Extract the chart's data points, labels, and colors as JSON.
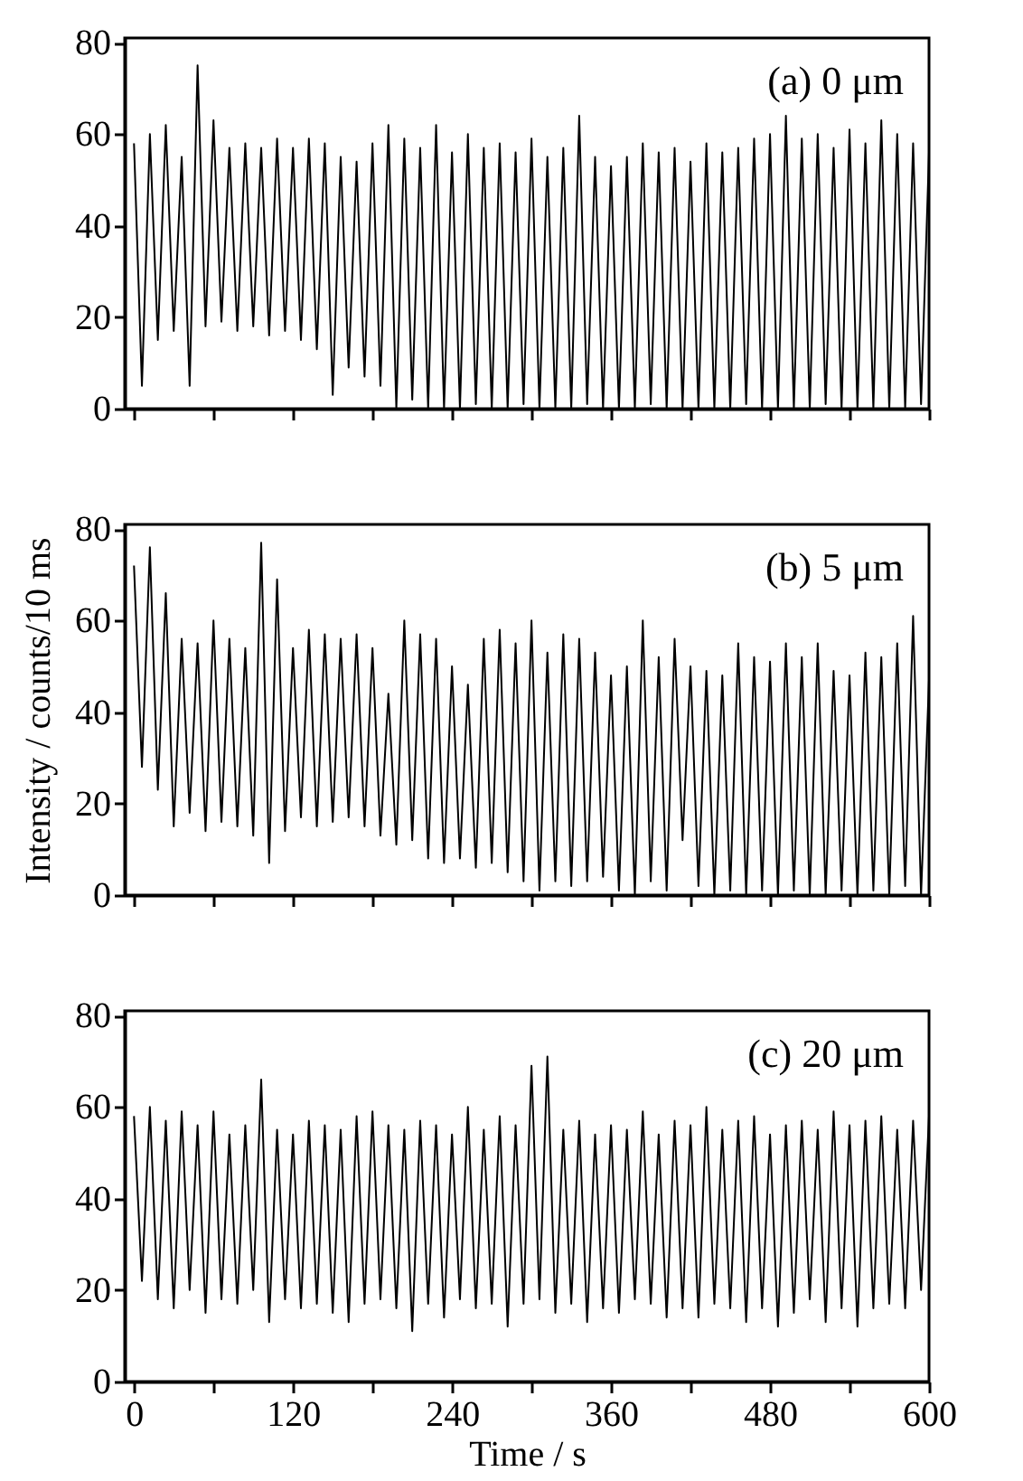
{
  "chart_data": [
    {
      "type": "line",
      "annotations": [
        "(a) 0 μm"
      ],
      "tick_labels": "y",
      "xlim": [
        -7,
        600
      ],
      "ylim": [
        0,
        81
      ],
      "yticks": [
        0,
        20,
        40,
        60,
        80
      ],
      "xticks": [
        0,
        {
          "value": 60,
          "label": null
        },
        120,
        {
          "value": 180,
          "label": null
        },
        240,
        {
          "value": 300,
          "label": null
        },
        360,
        {
          "value": 420,
          "label": null
        },
        480,
        {
          "value": 540,
          "label": null
        },
        600
      ],
      "x": [
        0,
        6,
        12,
        18,
        24,
        30,
        36,
        42,
        48,
        54,
        60,
        66,
        72,
        78,
        84,
        90,
        96,
        102,
        108,
        114,
        120,
        126,
        132,
        138,
        144,
        150,
        156,
        162,
        168,
        174,
        180,
        186,
        192,
        198,
        204,
        210,
        216,
        222,
        228,
        234,
        240,
        246,
        252,
        258,
        264,
        270,
        276,
        282,
        288,
        294,
        300,
        306,
        312,
        318,
        324,
        330,
        336,
        342,
        348,
        354,
        360,
        366,
        372,
        378,
        384,
        390,
        396,
        402,
        408,
        414,
        420,
        426,
        432,
        438,
        444,
        450,
        456,
        462,
        468,
        474,
        480,
        486,
        492,
        498,
        504,
        510,
        516,
        522,
        528,
        534,
        540,
        546,
        552,
        558,
        564,
        570,
        576,
        582,
        588,
        594,
        600
      ],
      "series": [
        {
          "color": "#000000",
          "values": [
            58,
            5,
            60,
            15,
            62,
            17,
            55,
            5,
            75,
            18,
            63,
            19,
            57,
            17,
            58,
            18,
            57,
            16,
            59,
            17,
            57,
            15,
            59,
            13,
            58,
            3,
            55,
            9,
            54,
            7,
            58,
            5,
            62,
            0,
            59,
            2,
            57,
            0,
            62,
            0,
            56,
            0,
            60,
            1,
            57,
            0,
            58,
            0,
            56,
            1,
            59,
            0,
            55,
            0,
            57,
            0,
            64,
            1,
            55,
            0,
            53,
            0,
            55,
            0,
            58,
            1,
            56,
            0,
            57,
            0,
            54,
            0,
            58,
            0,
            56,
            0,
            57,
            1,
            59,
            0,
            60,
            0,
            64,
            0,
            59,
            0,
            60,
            1,
            57,
            0,
            61,
            0,
            58,
            0,
            63,
            0,
            60,
            0,
            58,
            1,
            56
          ]
        }
      ]
    },
    {
      "type": "line",
      "annotations": [
        "(b) 5 μm"
      ],
      "ylabel": "Intensity / counts/10 ms",
      "tick_labels": "y",
      "xlim": [
        -7,
        600
      ],
      "ylim": [
        0,
        81
      ],
      "yticks": [
        0,
        20,
        40,
        60,
        80
      ],
      "xticks": [
        0,
        {
          "value": 60,
          "label": null
        },
        120,
        {
          "value": 180,
          "label": null
        },
        240,
        {
          "value": 300,
          "label": null
        },
        360,
        {
          "value": 420,
          "label": null
        },
        480,
        {
          "value": 540,
          "label": null
        },
        600
      ],
      "x": [
        0,
        6,
        12,
        18,
        24,
        30,
        36,
        42,
        48,
        54,
        60,
        66,
        72,
        78,
        84,
        90,
        96,
        102,
        108,
        114,
        120,
        126,
        132,
        138,
        144,
        150,
        156,
        162,
        168,
        174,
        180,
        186,
        192,
        198,
        204,
        210,
        216,
        222,
        228,
        234,
        240,
        246,
        252,
        258,
        264,
        270,
        276,
        282,
        288,
        294,
        300,
        306,
        312,
        318,
        324,
        330,
        336,
        342,
        348,
        354,
        360,
        366,
        372,
        378,
        384,
        390,
        396,
        402,
        408,
        414,
        420,
        426,
        432,
        438,
        444,
        450,
        456,
        462,
        468,
        474,
        480,
        486,
        492,
        498,
        504,
        510,
        516,
        522,
        528,
        534,
        540,
        546,
        552,
        558,
        564,
        570,
        576,
        582,
        588,
        594,
        600
      ],
      "series": [
        {
          "color": "#000000",
          "values": [
            72,
            28,
            76,
            23,
            66,
            15,
            56,
            18,
            55,
            14,
            60,
            16,
            56,
            15,
            54,
            13,
            77,
            7,
            69,
            14,
            54,
            17,
            58,
            15,
            57,
            16,
            56,
            17,
            57,
            15,
            54,
            13,
            44,
            11,
            60,
            12,
            57,
            8,
            56,
            7,
            50,
            8,
            46,
            6,
            56,
            7,
            58,
            5,
            55,
            3,
            60,
            1,
            53,
            3,
            57,
            2,
            56,
            3,
            53,
            4,
            48,
            1,
            50,
            0,
            60,
            3,
            52,
            1,
            56,
            12,
            50,
            2,
            49,
            0,
            48,
            1,
            55,
            0,
            52,
            1,
            51,
            0,
            55,
            1,
            52,
            0,
            55,
            0,
            49,
            1,
            48,
            0,
            53,
            1,
            52,
            0,
            55,
            2,
            61,
            0,
            47
          ]
        }
      ]
    },
    {
      "type": "line",
      "annotations": [
        "(c) 20 μm"
      ],
      "xlabel": "Time / s",
      "xlim": [
        -7,
        600
      ],
      "ylim": [
        0,
        81
      ],
      "yticks": [
        0,
        20,
        40,
        60,
        80
      ],
      "xticks": [
        0,
        {
          "value": 60,
          "label": null
        },
        120,
        {
          "value": 180,
          "label": null
        },
        240,
        {
          "value": 300,
          "label": null
        },
        360,
        {
          "value": 420,
          "label": null
        },
        480,
        {
          "value": 540,
          "label": null
        },
        600
      ],
      "x": [
        0,
        6,
        12,
        18,
        24,
        30,
        36,
        42,
        48,
        54,
        60,
        66,
        72,
        78,
        84,
        90,
        96,
        102,
        108,
        114,
        120,
        126,
        132,
        138,
        144,
        150,
        156,
        162,
        168,
        174,
        180,
        186,
        192,
        198,
        204,
        210,
        216,
        222,
        228,
        234,
        240,
        246,
        252,
        258,
        264,
        270,
        276,
        282,
        288,
        294,
        300,
        306,
        312,
        318,
        324,
        330,
        336,
        342,
        348,
        354,
        360,
        366,
        372,
        378,
        384,
        390,
        396,
        402,
        408,
        414,
        420,
        426,
        432,
        438,
        444,
        450,
        456,
        462,
        468,
        474,
        480,
        486,
        492,
        498,
        504,
        510,
        516,
        522,
        528,
        534,
        540,
        546,
        552,
        558,
        564,
        570,
        576,
        582,
        588,
        594,
        600
      ],
      "series": [
        {
          "color": "#000000",
          "values": [
            58,
            22,
            60,
            18,
            57,
            16,
            59,
            20,
            56,
            15,
            59,
            18,
            54,
            17,
            56,
            20,
            66,
            13,
            55,
            18,
            54,
            16,
            57,
            17,
            56,
            15,
            55,
            13,
            58,
            17,
            59,
            18,
            56,
            16,
            55,
            11,
            57,
            17,
            56,
            14,
            54,
            18,
            60,
            16,
            55,
            17,
            58,
            12,
            56,
            17,
            69,
            18,
            71,
            15,
            55,
            17,
            57,
            13,
            54,
            16,
            56,
            15,
            55,
            18,
            59,
            17,
            54,
            14,
            57,
            16,
            56,
            14,
            60,
            17,
            55,
            16,
            57,
            13,
            58,
            16,
            54,
            12,
            56,
            15,
            57,
            18,
            55,
            13,
            59,
            16,
            56,
            12,
            57,
            16,
            58,
            17,
            55,
            16,
            57,
            20,
            58
          ]
        }
      ]
    }
  ]
}
